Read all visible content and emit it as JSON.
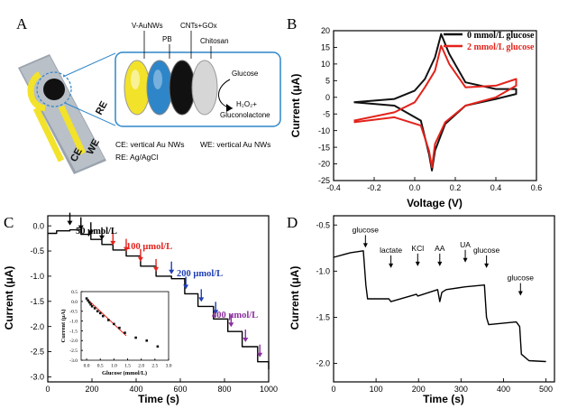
{
  "panels": {
    "a": {
      "letter": "A",
      "layers": [
        "V-AuNWs",
        "PB",
        "CNTs+GOx",
        "Chitosan"
      ],
      "reaction": {
        "reactant": "Glucose",
        "product1": "H₂O₂+",
        "product2": "Gluconolactone"
      },
      "electrodes": {
        "ce": "CE",
        "we": "WE",
        "re": "RE"
      },
      "notes": [
        "CE: vertical Au NWs",
        "WE: vertical Au NWs",
        "RE: Ag/AgCl"
      ],
      "colors": {
        "gold": "#f2e22a",
        "blue": "#2e86c9",
        "black": "#111111",
        "gray": "#d6d6d6"
      }
    },
    "b": {
      "letter": "B"
    },
    "c": {
      "letter": "C",
      "annotations": [
        "50 μmol/L",
        "100 μmol/L",
        "200 μmol/L",
        "400 μmol/L"
      ]
    },
    "d": {
      "letter": "D"
    }
  },
  "chart_data": [
    {
      "id": "B",
      "type": "line",
      "xlabel": "Voltage (V)",
      "ylabel": "Current (μA)",
      "xlim": [
        -0.4,
        0.6
      ],
      "ylim": [
        -25,
        20
      ],
      "xticks": [
        "-0.4",
        "-0.2",
        "0.0",
        "0.2",
        "0.4",
        "0.6"
      ],
      "yticks": [
        "20",
        "15",
        "10",
        "5",
        "0",
        "-5",
        "-10",
        "-15",
        "-20",
        "-25"
      ],
      "legend": [
        "0 mmol/L glucose",
        "2 mmol/L glucose"
      ],
      "series": [
        {
          "name": "0 mmol/L glucose",
          "color": "#111111",
          "x": [
            -0.3,
            -0.1,
            0.0,
            0.05,
            0.1,
            0.13,
            0.17,
            0.25,
            0.4,
            0.5,
            0.5,
            0.4,
            0.25,
            0.15,
            0.1,
            0.085,
            0.07,
            0.03,
            -0.1,
            -0.3
          ],
          "y": [
            -1.5,
            -0.5,
            2.0,
            5.5,
            12.0,
            19.0,
            13.0,
            4.5,
            2.5,
            2.5,
            1.0,
            -0.5,
            -2.5,
            -8.0,
            -16.0,
            -22.0,
            -17.0,
            -7.0,
            -2.5,
            -1.5
          ]
        },
        {
          "name": "2 mmol/L glucose",
          "color": "#e3231c",
          "x": [
            -0.3,
            -0.1,
            0.0,
            0.05,
            0.1,
            0.13,
            0.17,
            0.25,
            0.4,
            0.5,
            0.5,
            0.4,
            0.25,
            0.15,
            0.1,
            0.085,
            0.07,
            0.03,
            -0.1,
            -0.3
          ],
          "y": [
            -7.0,
            -4.5,
            -1.5,
            3.0,
            8.0,
            15.5,
            10.0,
            3.0,
            3.5,
            5.5,
            3.5,
            0.0,
            -2.5,
            -7.5,
            -14.0,
            -21.0,
            -16.0,
            -8.5,
            -6.0,
            -7.5
          ]
        }
      ]
    },
    {
      "id": "C",
      "type": "line",
      "xlabel": "Time (s)",
      "ylabel": "Current (μA)",
      "xlim": [
        0,
        1000
      ],
      "ylim": [
        -3.1,
        0.2
      ],
      "xticks": [
        "0",
        "200",
        "400",
        "600",
        "800",
        "1000"
      ],
      "yticks": [
        "0.0",
        "-0.5",
        "-1.0",
        "-1.5",
        "-2.0",
        "-2.5",
        "-3.0"
      ],
      "series": [
        {
          "name": "amperometric response",
          "color": "#000000",
          "x": [
            0,
            40,
            100,
            150,
            195,
            245,
            295,
            355,
            420,
            490,
            560,
            620,
            680,
            750,
            815,
            880,
            950,
            1000
          ],
          "y": [
            -0.15,
            -0.1,
            -0.08,
            -0.17,
            -0.27,
            -0.37,
            -0.48,
            -0.6,
            -0.8,
            -1.0,
            -1.05,
            -1.35,
            -1.6,
            -1.85,
            -2.1,
            -2.4,
            -2.7,
            -2.85
          ]
        }
      ],
      "arrows": {
        "x": [
          100,
          150,
          195,
          245,
          295,
          355,
          420,
          490,
          560,
          625,
          695,
          760,
          830,
          895,
          960
        ],
        "colors": [
          "#000000",
          "#000000",
          "#000000",
          "#000000",
          "#e3231c",
          "#e3231c",
          "#e3231c",
          "#e3231c",
          "#1f3fb5",
          "#1f3fb5",
          "#1f3fb5",
          "#1f3fb5",
          "#8b2f9e",
          "#8b2f9e",
          "#8b2f9e"
        ]
      },
      "inset": {
        "type": "scatter",
        "xlabel": "Glucose (mmol/L)",
        "ylabel": "Current (μA)",
        "xlim": [
          -0.2,
          3.0
        ],
        "ylim": [
          -3.0,
          0.5
        ],
        "xticks": [
          "0.0",
          "0.5",
          "1.0",
          "1.5",
          "2.0",
          "2.5",
          "3.0"
        ],
        "yticks": [
          "0.5",
          "0.0",
          "-0.5",
          "-1.0",
          "-1.5",
          "-2.0",
          "-2.5",
          "-3.0"
        ],
        "x": [
          0.0,
          0.05,
          0.1,
          0.15,
          0.2,
          0.3,
          0.4,
          0.5,
          0.6,
          0.8,
          1.0,
          1.2,
          1.4,
          1.8,
          2.2,
          2.6
        ],
        "y": [
          0.15,
          0.05,
          -0.05,
          -0.15,
          -0.25,
          -0.35,
          -0.5,
          -0.6,
          -0.75,
          -0.95,
          -1.15,
          -1.35,
          -1.6,
          -1.85,
          -2.0,
          -2.3
        ],
        "fit": {
          "x": [
            0.0,
            1.45
          ],
          "y": [
            0.15,
            -1.75
          ],
          "color": "#e3231c"
        }
      }
    },
    {
      "id": "D",
      "type": "line",
      "xlabel": "Time (s)",
      "ylabel": "Current (μA)",
      "xlim": [
        0,
        520
      ],
      "ylim": [
        -2.2,
        -0.4
      ],
      "xticks": [
        "0",
        "100",
        "200",
        "300",
        "400",
        "500"
      ],
      "yticks": [
        "-0.5",
        "-1.0",
        "-1.5",
        "-2.0"
      ],
      "series": [
        {
          "name": "interference test",
          "color": "#000000",
          "x": [
            0,
            40,
            70,
            76,
            80,
            130,
            135,
            195,
            198,
            245,
            250,
            255,
            265,
            310,
            355,
            360,
            365,
            430,
            438,
            442,
            460,
            500
          ],
          "y": [
            -0.85,
            -0.8,
            -0.78,
            -1.15,
            -1.3,
            -1.3,
            -1.33,
            -1.25,
            -1.27,
            -1.2,
            -1.33,
            -1.23,
            -1.2,
            -1.17,
            -1.15,
            -1.5,
            -1.58,
            -1.55,
            -1.6,
            -1.9,
            -1.97,
            -1.98
          ]
        }
      ],
      "annotations": [
        {
          "text": "glucose",
          "x": 75,
          "y": -0.58
        },
        {
          "text": "lactate",
          "x": 135,
          "y": -0.8
        },
        {
          "text": "KCl",
          "x": 198,
          "y": -0.78
        },
        {
          "text": "AA",
          "x": 250,
          "y": -0.78
        },
        {
          "text": "UA",
          "x": 310,
          "y": -0.74
        },
        {
          "text": "glucose",
          "x": 360,
          "y": -0.8
        },
        {
          "text": "glucose",
          "x": 440,
          "y": -1.1
        }
      ]
    }
  ]
}
